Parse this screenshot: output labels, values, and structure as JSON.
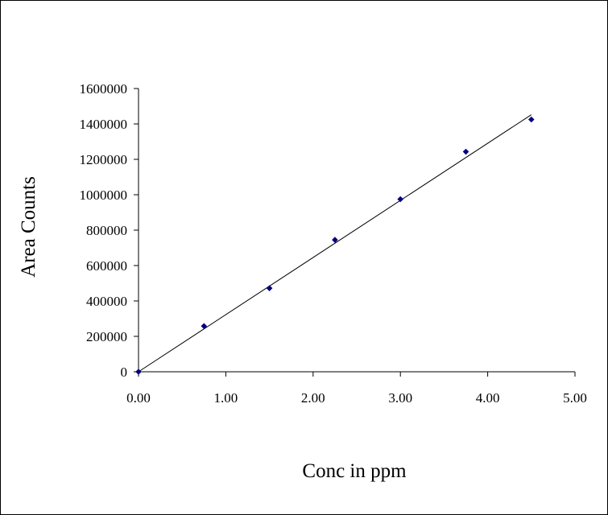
{
  "chart_data": {
    "type": "scatter",
    "title": "",
    "xlabel": "Conc in ppm",
    "ylabel": "Area Counts",
    "xlim": [
      0,
      5
    ],
    "ylim": [
      0,
      1600000
    ],
    "xticks": [
      0,
      1,
      2,
      3,
      4,
      5
    ],
    "xtick_labels": [
      "0.00",
      "1.00",
      "2.00",
      "3.00",
      "4.00",
      "5.00"
    ],
    "yticks": [
      0,
      200000,
      400000,
      600000,
      800000,
      1000000,
      1200000,
      1400000,
      1600000
    ],
    "ytick_labels": [
      "0",
      "200000",
      "400000",
      "600000",
      "800000",
      "1000000",
      "1200000",
      "1400000",
      "1600000"
    ],
    "grid": false,
    "legend": "none",
    "series": [
      {
        "x": [
          0.0,
          0.75,
          1.5,
          2.25,
          3.0,
          3.75,
          4.5
        ],
        "y": [
          0,
          258000,
          472000,
          745000,
          975000,
          1243000,
          1425000
        ],
        "marker": "diamond",
        "color": "#000080"
      }
    ],
    "trendline": {
      "type": "linear",
      "x": [
        0.0,
        4.5
      ],
      "y": [
        0,
        1452000
      ],
      "color": "#000000"
    }
  }
}
